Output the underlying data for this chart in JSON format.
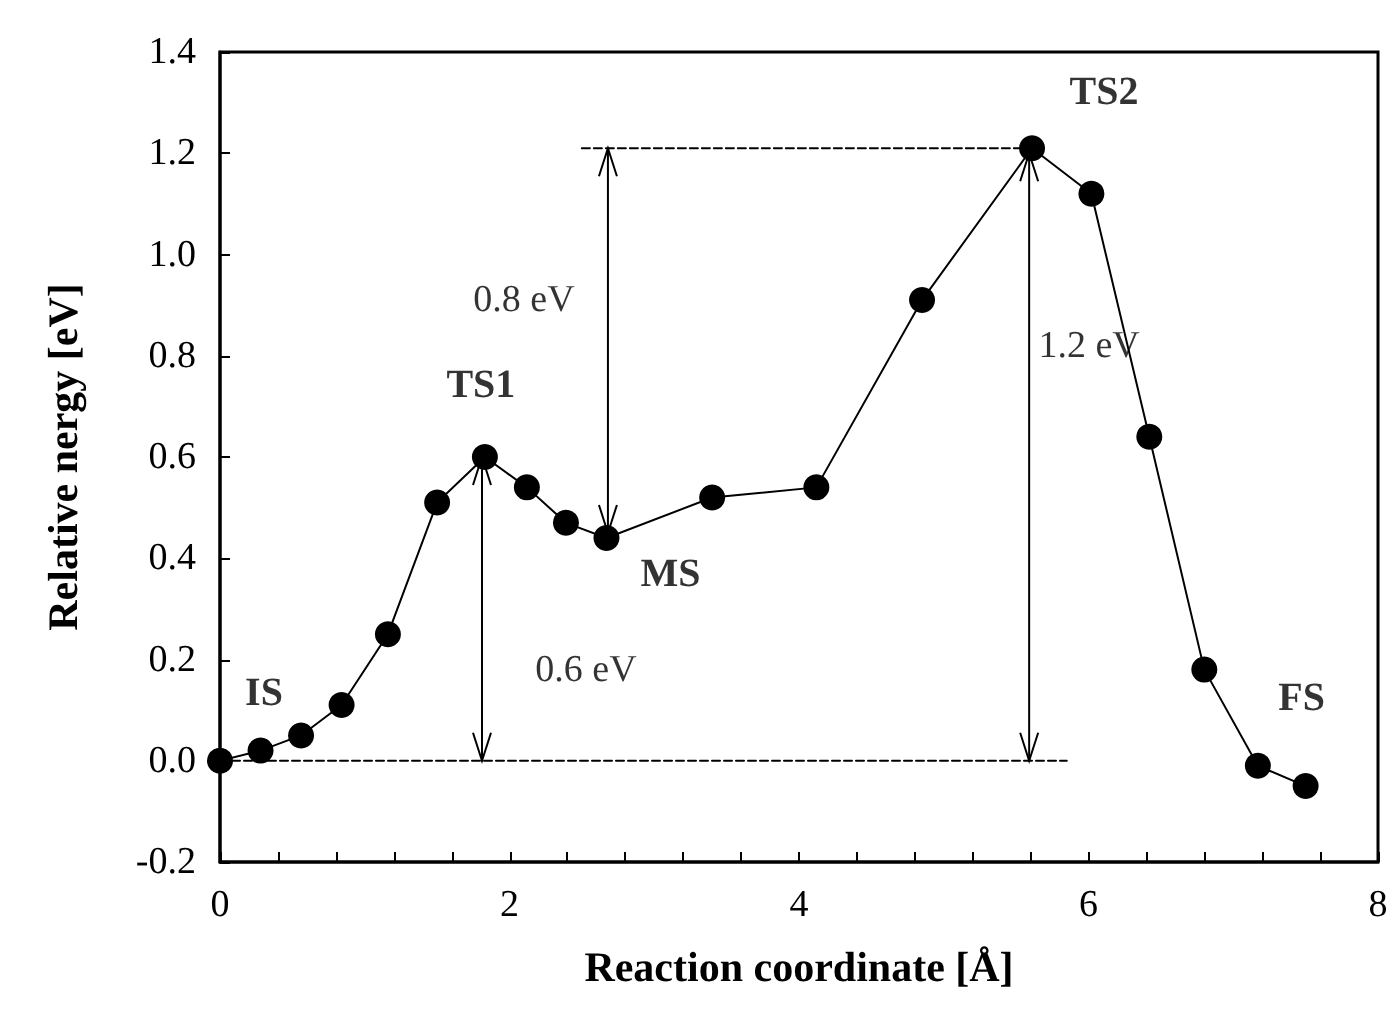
{
  "chart_data": {
    "type": "line",
    "xlabel": "Reaction coordinate [Å]",
    "ylabel": "Relative nergy [eV]",
    "xlim": [
      0,
      8
    ],
    "ylim": [
      -0.2,
      1.4
    ],
    "xticks": [
      0,
      {
        "value": 0.4,
        "label": null
      },
      {
        "value": 0.8,
        "label": null
      },
      {
        "value": 1.2,
        "label": null
      },
      {
        "value": 1.6,
        "label": null
      },
      2,
      {
        "value": 2.4,
        "label": null
      },
      {
        "value": 2.8,
        "label": null
      },
      {
        "value": 3.2,
        "label": null
      },
      {
        "value": 3.6,
        "label": null
      },
      4,
      {
        "value": 4.4,
        "label": null
      },
      {
        "value": 4.8,
        "label": null
      },
      {
        "value": 5.2,
        "label": null
      },
      {
        "value": 5.6,
        "label": null
      },
      6,
      {
        "value": 6.4,
        "label": null
      },
      {
        "value": 6.8,
        "label": null
      },
      {
        "value": 7.2,
        "label": null
      },
      {
        "value": 7.6,
        "label": null
      },
      8
    ],
    "yticks": [
      {
        "value": -0.2,
        "label": "-0.2"
      },
      {
        "value": 0,
        "label": "0.0"
      },
      0.2,
      0.4,
      0.6,
      0.8,
      {
        "value": 1,
        "label": "1.0"
      },
      1.2,
      1.4
    ],
    "grid": false,
    "series": [
      {
        "color": "#000000",
        "marker": "circle",
        "x": [
          0,
          0.28,
          0.56,
          0.84,
          1.16,
          1.5,
          1.83,
          2.12,
          2.39,
          2.67,
          3.4,
          4.12,
          4.85,
          5.61,
          6.02,
          6.42,
          6.8,
          7.17,
          7.5
        ],
        "values": [
          0,
          0.02,
          0.05,
          0.11,
          0.25,
          0.51,
          0.6,
          0.54,
          0.47,
          0.44,
          0.52,
          0.54,
          0.91,
          1.21,
          1.12,
          0.64,
          0.18,
          -0.01,
          -0.05
        ]
      },
      {
        "color": "#000000",
        "marker": "none",
        "line_style": "dashed",
        "x": [
          0,
          5.85
        ],
        "values": [
          0,
          0
        ]
      },
      {
        "color": "#000000",
        "marker": "none",
        "line_style": "dashed",
        "x": [
          2.5,
          5.61
        ],
        "values": [
          1.21,
          1.21
        ]
      },
      {
        "color": "#000000",
        "marker": "none",
        "line_style": "solid",
        "x": [
          1.81,
          1.81
        ],
        "values": [
          0,
          0.6
        ]
      },
      {
        "color": "#000000",
        "marker": "none",
        "line_style": "solid",
        "x": [
          2.68,
          2.68
        ],
        "values": [
          1.21,
          0.45
        ]
      },
      {
        "color": "#000000",
        "marker": "none",
        "line_style": "solid",
        "x": [
          5.59,
          5.59
        ],
        "values": [
          0,
          1.2
        ]
      }
    ],
    "annotations": [
      {
        "text": "IS",
        "x": 0,
        "y": 0
      },
      {
        "text": "TS1",
        "x": 1.83,
        "y": 0.6
      },
      {
        "text": "MS",
        "x": 2.67,
        "y": 0.44
      },
      {
        "text": "TS2",
        "x": 5.61,
        "y": 1.21
      },
      {
        "text": "FS",
        "x": 7.5,
        "y": -0.05
      },
      {
        "text": "0.8 eV",
        "x": 2.68,
        "y": 0.91
      },
      {
        "text": "0.6 eV",
        "x": 1.81,
        "y": 0.18
      },
      {
        "text": "1.2 eV",
        "x": 5.59,
        "y": 0.82
      }
    ]
  }
}
